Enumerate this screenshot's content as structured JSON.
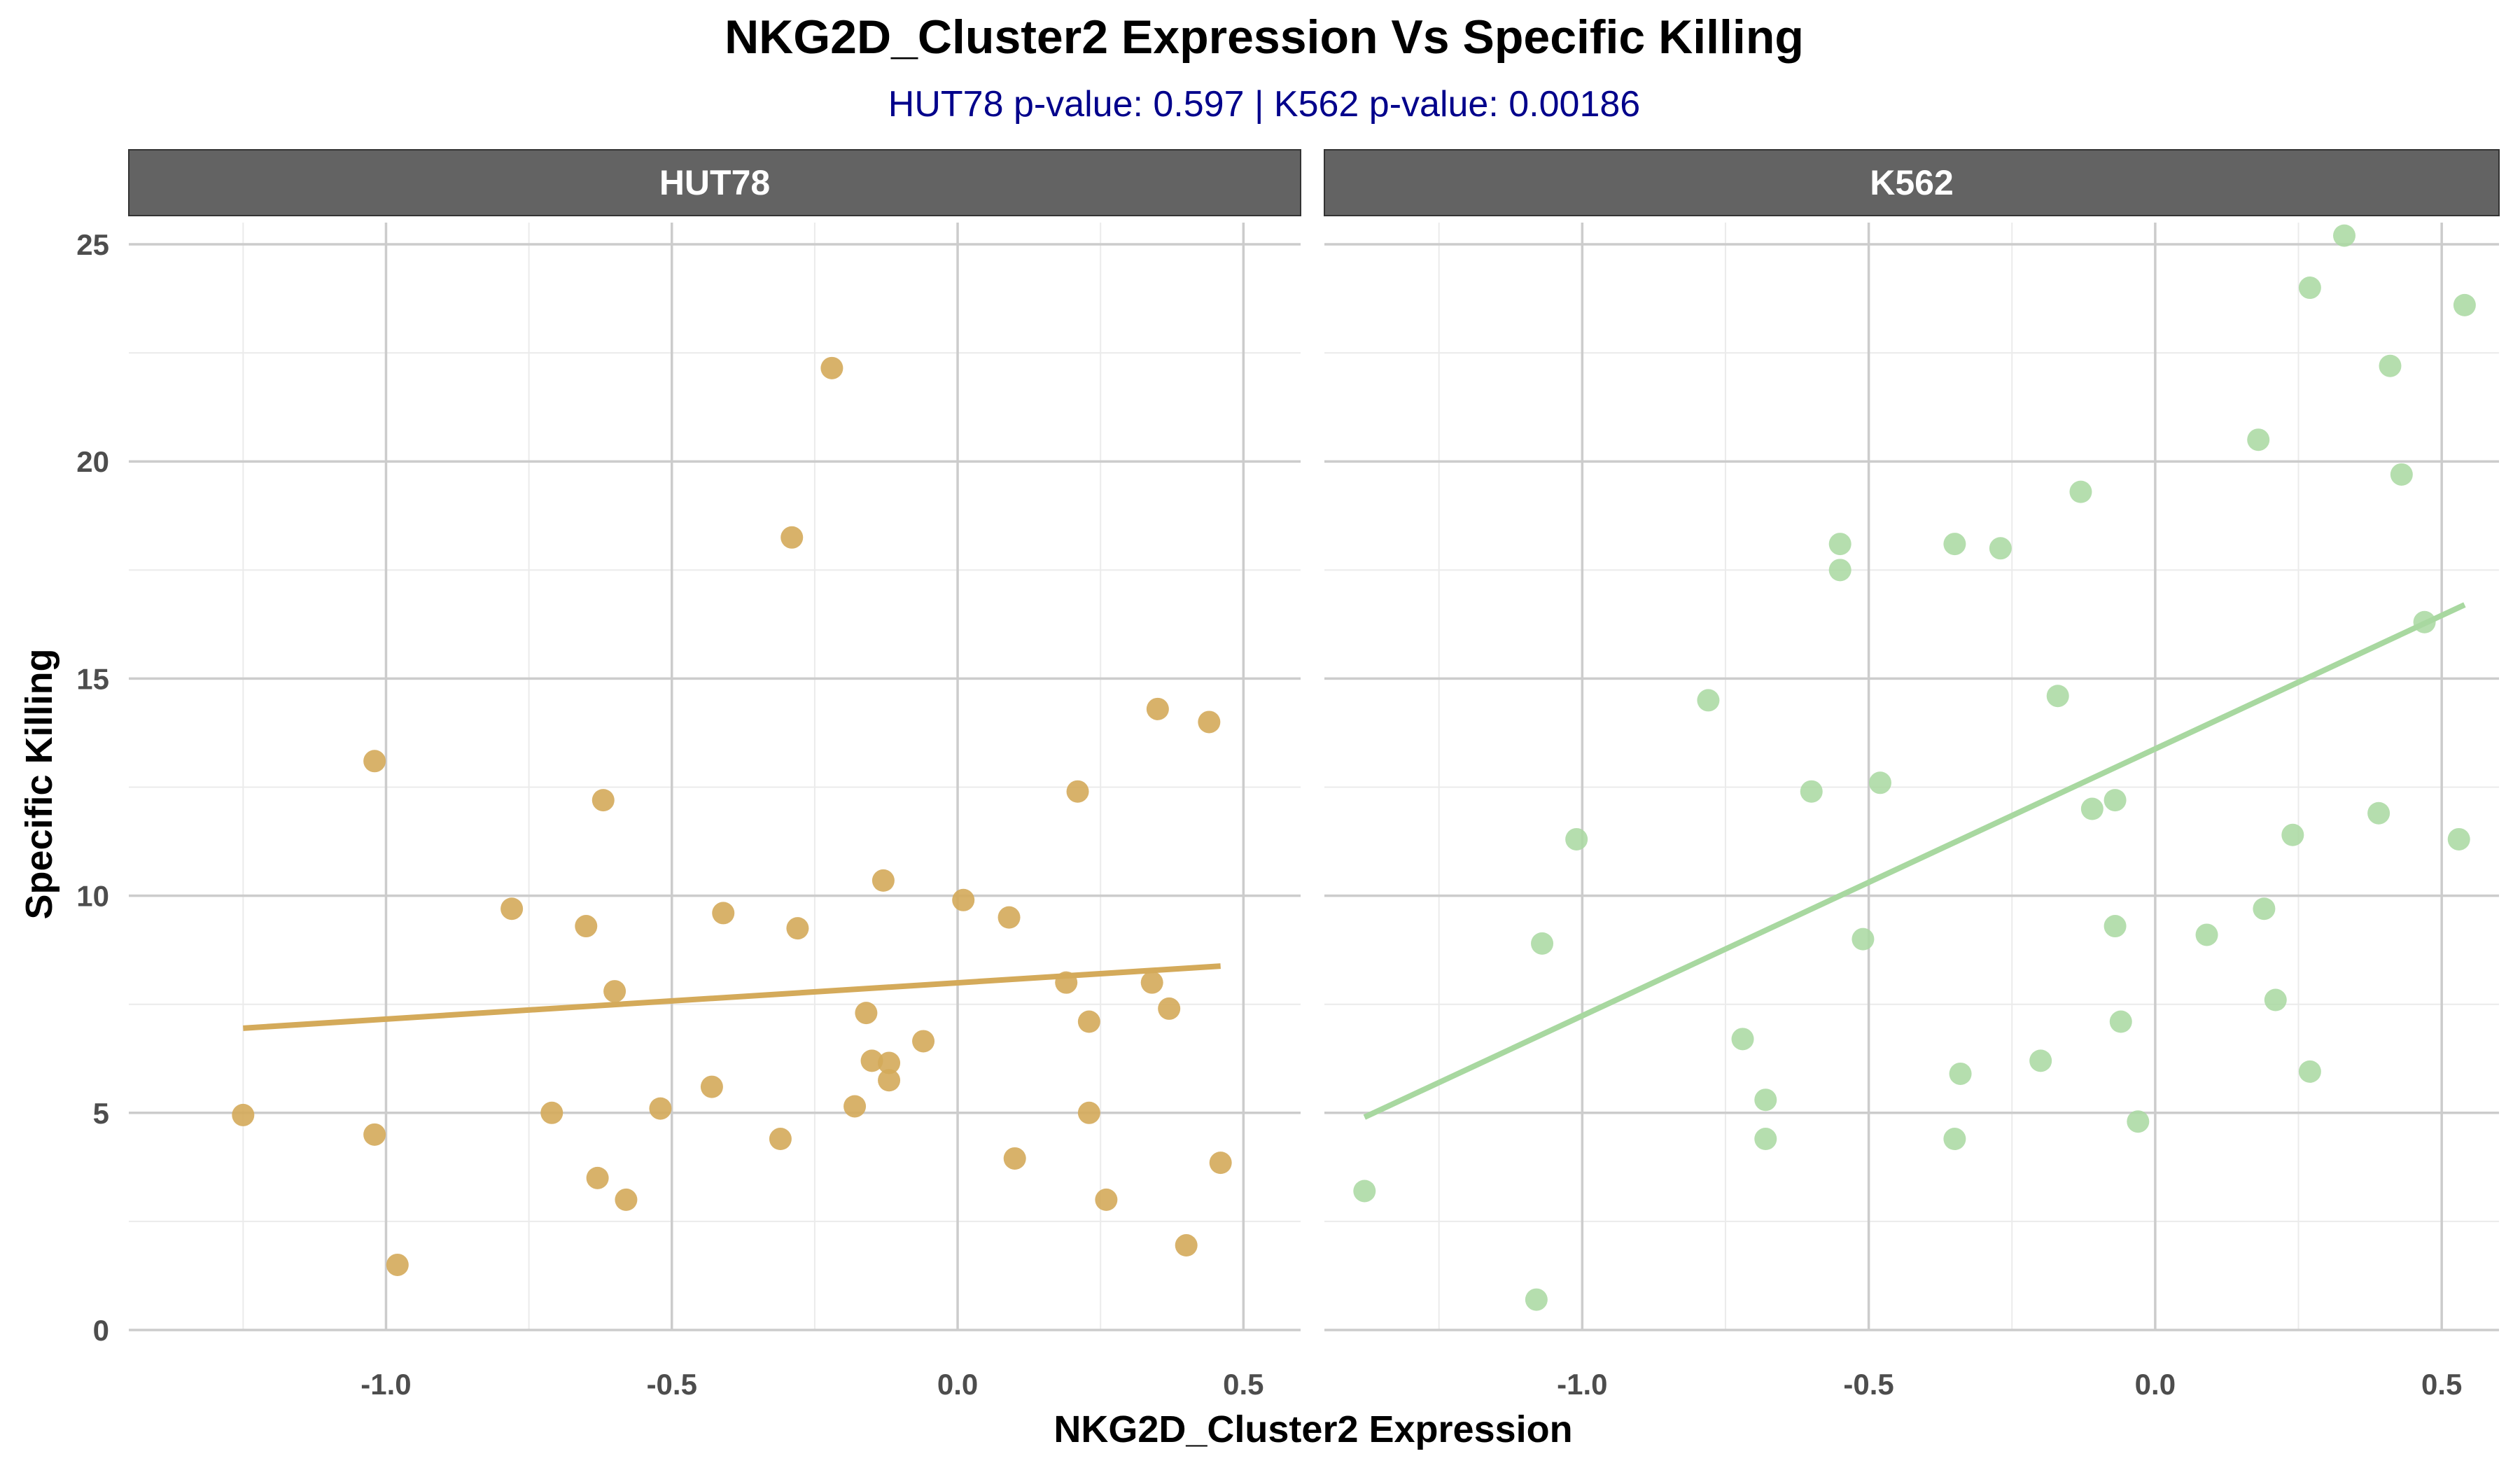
{
  "chart_data": {
    "type": "scatter",
    "title": "NKG2D_Cluster2 Expression Vs Specific Killing",
    "subtitle": "HUT78 p-value: 0.597  | K562 p-value: 0.00186",
    "subtitle_color": "#00008B",
    "xlabel": "NKG2D_Cluster2 Expression",
    "ylabel": "Specific Killing",
    "xlim": [
      -1.45,
      0.6
    ],
    "ylim": [
      0,
      25.5
    ],
    "x_ticks": [
      -1.0,
      -0.5,
      0.0,
      0.5
    ],
    "x_tick_labels": [
      "-1.0",
      "-0.5",
      "0.0",
      "0.5"
    ],
    "y_ticks": [
      0,
      5,
      10,
      15,
      20,
      25
    ],
    "y_tick_labels": [
      "0",
      "5",
      "10",
      "15",
      "20",
      "25"
    ],
    "grid": true,
    "strip_color": "#636363",
    "panels": [
      {
        "name": "HUT78",
        "color": "#D4AA5A",
        "trend": {
          "x": [
            -1.25,
            0.46
          ],
          "y": [
            6.95,
            8.38
          ]
        },
        "x": [
          -1.25,
          -1.02,
          -1.02,
          -0.98,
          -0.78,
          -0.71,
          -0.65,
          -0.63,
          -0.62,
          -0.6,
          -0.58,
          -0.52,
          -0.43,
          -0.41,
          -0.31,
          -0.29,
          -0.28,
          -0.22,
          -0.18,
          -0.16,
          -0.15,
          -0.13,
          -0.12,
          -0.12,
          -0.06,
          0.01,
          0.09,
          0.1,
          0.19,
          0.21,
          0.23,
          0.23,
          0.26,
          0.34,
          0.35,
          0.37,
          0.4,
          0.44,
          0.46
        ],
        "y": [
          4.95,
          13.1,
          4.5,
          1.5,
          9.7,
          5.0,
          9.3,
          3.5,
          12.2,
          7.8,
          3.0,
          5.1,
          5.6,
          9.6,
          4.4,
          18.25,
          9.25,
          22.15,
          5.15,
          7.3,
          6.2,
          10.35,
          6.15,
          5.75,
          6.65,
          9.9,
          9.5,
          3.95,
          8.0,
          12.4,
          7.1,
          5.0,
          3.0,
          8.0,
          14.3,
          7.4,
          1.95,
          14.0,
          3.85
        ]
      },
      {
        "name": "K562",
        "color": "#A8D8A0",
        "trend": {
          "x": [
            -1.38,
            0.54
          ],
          "y": [
            4.9,
            16.7
          ]
        },
        "x": [
          -1.38,
          -1.08,
          -1.07,
          -1.01,
          -0.78,
          -0.72,
          -0.68,
          -0.68,
          -0.6,
          -0.55,
          -0.55,
          -0.51,
          -0.48,
          -0.35,
          -0.35,
          -0.34,
          -0.27,
          -0.2,
          -0.17,
          -0.13,
          -0.11,
          -0.07,
          -0.07,
          -0.06,
          -0.03,
          0.09,
          0.18,
          0.19,
          0.21,
          0.24,
          0.27,
          0.27,
          0.33,
          0.39,
          0.41,
          0.43,
          0.47,
          0.53,
          0.54
        ],
        "y": [
          3.2,
          0.7,
          8.9,
          11.3,
          14.5,
          6.7,
          5.3,
          4.4,
          12.4,
          18.1,
          17.5,
          9.0,
          12.6,
          18.1,
          4.4,
          5.9,
          18.0,
          6.2,
          14.6,
          19.3,
          12.0,
          12.2,
          9.3,
          7.1,
          4.8,
          9.1,
          20.5,
          9.7,
          7.6,
          11.4,
          24.0,
          5.95,
          25.2,
          11.9,
          22.2,
          19.7,
          16.3,
          11.3,
          23.6
        ]
      }
    ]
  }
}
